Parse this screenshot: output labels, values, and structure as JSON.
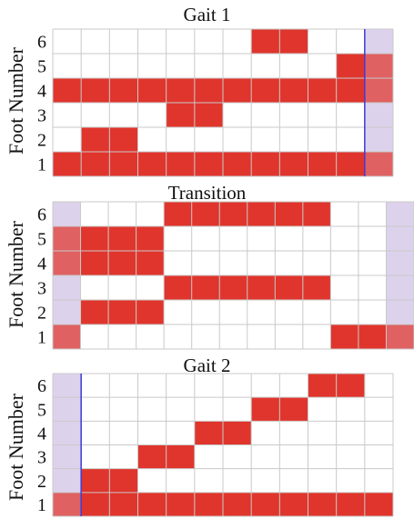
{
  "chart_data": [
    {
      "type": "heatmap",
      "title": "Gait 1",
      "ylabel": "Foot Number",
      "y_ticks": [
        "1",
        "2",
        "3",
        "4",
        "5",
        "6"
      ],
      "num_columns": 12,
      "on_color": "#e0352d",
      "highlight_color": "#ddd2ec",
      "highlight_columns": [
        11
      ],
      "divider_after_column": 10,
      "rows": {
        "6": [
          0,
          0,
          0,
          0,
          0,
          0,
          0,
          1,
          1,
          0,
          0,
          0
        ],
        "5": [
          0,
          0,
          0,
          0,
          0,
          0,
          0,
          0,
          0,
          0,
          1,
          1
        ],
        "4": [
          1,
          1,
          1,
          1,
          1,
          1,
          1,
          1,
          1,
          1,
          1,
          1
        ],
        "3": [
          0,
          0,
          0,
          0,
          1,
          1,
          0,
          0,
          0,
          0,
          0,
          0
        ],
        "2": [
          0,
          1,
          1,
          0,
          0,
          0,
          0,
          0,
          0,
          0,
          0,
          0
        ],
        "1": [
          1,
          1,
          1,
          1,
          1,
          1,
          1,
          1,
          1,
          1,
          1,
          1
        ]
      }
    },
    {
      "type": "heatmap",
      "title": "Transition",
      "ylabel": "Foot Number",
      "y_ticks": [
        "1",
        "2",
        "3",
        "4",
        "5",
        "6"
      ],
      "num_columns": 13,
      "on_color": "#e0352d",
      "highlight_color": "#ddd2ec",
      "highlight_columns": [
        0,
        12
      ],
      "divider_after_column": null,
      "rows": {
        "6": [
          0,
          0,
          0,
          0,
          1,
          1,
          1,
          1,
          1,
          1,
          0,
          0,
          0
        ],
        "5": [
          1,
          1,
          1,
          1,
          0,
          0,
          0,
          0,
          0,
          0,
          0,
          0,
          0
        ],
        "4": [
          1,
          1,
          1,
          1,
          0,
          0,
          0,
          0,
          0,
          0,
          0,
          0,
          0
        ],
        "3": [
          0,
          0,
          0,
          0,
          1,
          1,
          1,
          1,
          1,
          1,
          0,
          0,
          0
        ],
        "2": [
          0,
          1,
          1,
          1,
          0,
          0,
          0,
          0,
          0,
          0,
          0,
          0,
          0
        ],
        "1": [
          1,
          0,
          0,
          0,
          0,
          0,
          0,
          0,
          0,
          0,
          1,
          1,
          1
        ]
      }
    },
    {
      "type": "heatmap",
      "title": "Gait 2",
      "ylabel": "Foot Number",
      "y_ticks": [
        "1",
        "2",
        "3",
        "4",
        "5",
        "6"
      ],
      "num_columns": 12,
      "on_color": "#e0352d",
      "highlight_color": "#ddd2ec",
      "highlight_columns": [
        0
      ],
      "divider_after_column": 0,
      "rows": {
        "6": [
          0,
          0,
          0,
          0,
          0,
          0,
          0,
          0,
          0,
          1,
          1,
          0
        ],
        "5": [
          0,
          0,
          0,
          0,
          0,
          0,
          0,
          1,
          1,
          0,
          0,
          0
        ],
        "4": [
          0,
          0,
          0,
          0,
          0,
          1,
          1,
          0,
          0,
          0,
          0,
          0
        ],
        "3": [
          0,
          0,
          0,
          1,
          1,
          0,
          0,
          0,
          0,
          0,
          0,
          0
        ],
        "2": [
          0,
          1,
          1,
          0,
          0,
          0,
          0,
          0,
          0,
          0,
          0,
          0
        ],
        "1": [
          1,
          1,
          1,
          1,
          1,
          1,
          1,
          1,
          1,
          1,
          1,
          1
        ]
      }
    }
  ]
}
